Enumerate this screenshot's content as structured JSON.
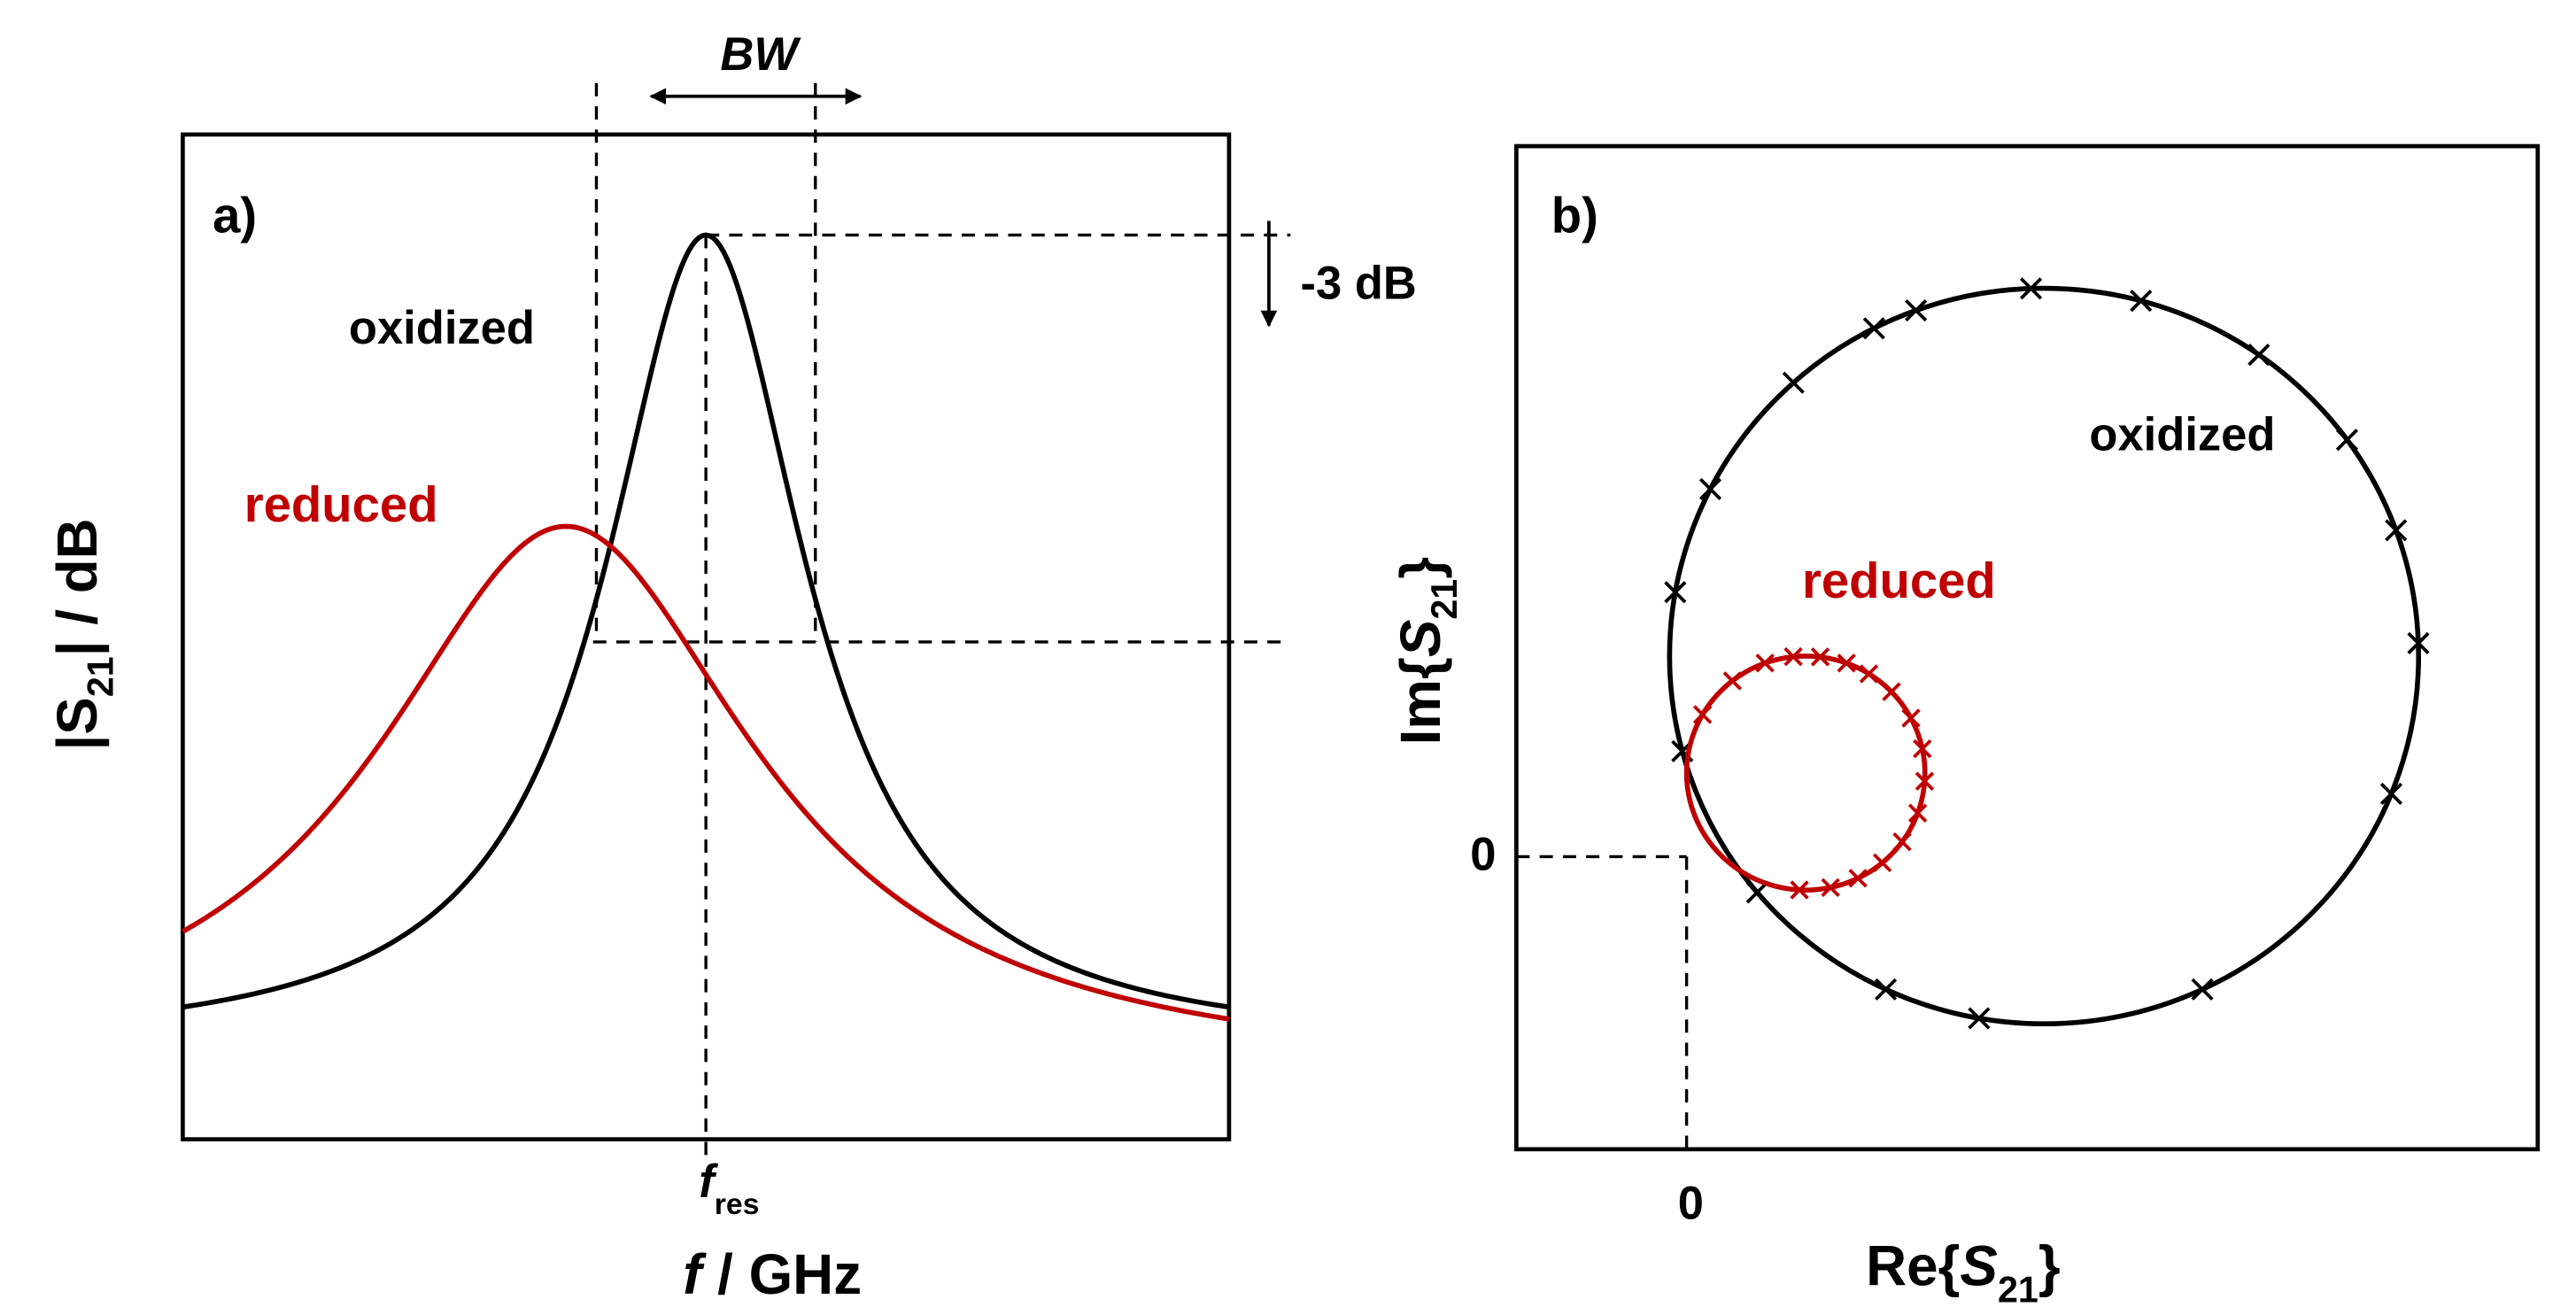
{
  "colors": {
    "oxidized": "#000000",
    "reduced": "#c00000",
    "axes": "#000000"
  },
  "chart_data": [
    {
      "type": "line",
      "panel_label": "a)",
      "xlabel": {
        "italic": "f",
        "rest": " / GHz"
      },
      "ylabel": {
        "pre": "|S",
        "sub": "21",
        "post": "| / dB"
      },
      "xtick": {
        "main": "f",
        "sub": "res"
      },
      "xlim": [
        -4.3,
        4.3
      ],
      "ylim": [
        0,
        1
      ],
      "grid": false,
      "series": [
        {
          "name": "oxidized",
          "shape": "lorentzian",
          "center": 0,
          "half_width": 1,
          "peak": 0.9,
          "baseline": 0.09
        },
        {
          "name": "reduced",
          "shape": "lorentzian",
          "center": -1.15,
          "half_width": 1.9,
          "peak": 0.61,
          "baseline": 0.06
        }
      ],
      "annotations": {
        "bandwidth": "BW",
        "attenuation": "-3 dB",
        "bandwidth_edges": [
          -0.9,
          0.9
        ]
      }
    },
    {
      "type": "scatter",
      "panel_label": "b)",
      "xlabel": {
        "pre": "Re{",
        "sub_main": "S",
        "sub": "21",
        "post": "}"
      },
      "ylabel": {
        "pre": "Im{",
        "sub_main": "S",
        "sub": "21",
        "post": "}"
      },
      "xticks": [
        "0"
      ],
      "yticks": [
        "0"
      ],
      "xlim": [
        -0.2,
        1.0
      ],
      "ylim": [
        -0.35,
        0.85
      ],
      "grid": false,
      "series": [
        {
          "name": "oxidized",
          "circle": {
            "center": [
              0.42,
              0.24
            ],
            "radius": 0.44
          }
        },
        {
          "name": "reduced",
          "circle": {
            "center": [
              0.14,
              0.1
            ],
            "radius": 0.14
          }
        }
      ]
    }
  ]
}
